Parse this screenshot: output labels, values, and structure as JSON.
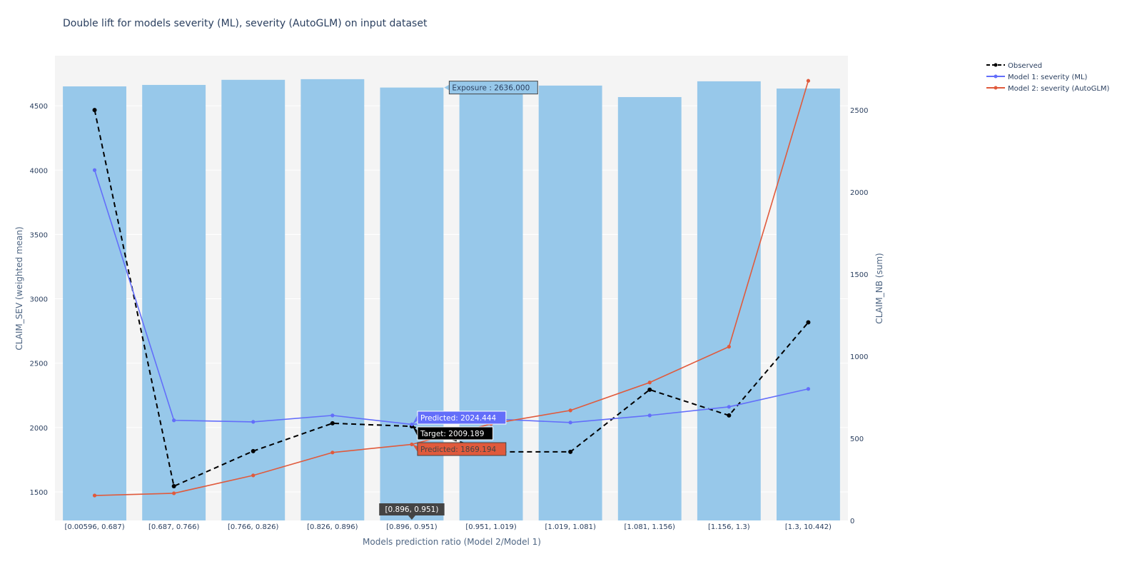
{
  "chart_data": {
    "type": "bar+line",
    "title": "Double lift for models severity (ML), severity (AutoGLM) on input dataset",
    "xlabel": "Models prediction ratio (Model 2/Model 1)",
    "ylabel": "CLAIM_SEV (weighted mean)",
    "y2label": "CLAIM_NB (sum)",
    "categories": [
      "[0.00596, 0.687)",
      "[0.687, 0.766)",
      "[0.766, 0.826)",
      "[0.826, 0.896)",
      "[0.896, 0.951)",
      "[0.951, 1.019)",
      "[1.019, 1.081)",
      "[1.081, 1.156)",
      "[1.156, 1.3)",
      "[1.3, 10.442)"
    ],
    "ylim": [
      1278,
      4889
    ],
    "y2lim": [
      0,
      2830
    ],
    "yticks": [
      1500,
      2000,
      2500,
      3000,
      3500,
      4000,
      4500
    ],
    "y2ticks": [
      0,
      500,
      1000,
      1500,
      2000,
      2500
    ],
    "grid": true,
    "legend_position": "top-right",
    "bars": {
      "name": "Exposure",
      "color": "#97c8ea",
      "axis": "y2",
      "values": [
        2643,
        2652,
        2683,
        2687,
        2636,
        2640,
        2648,
        2578,
        2674,
        2630
      ]
    },
    "series": [
      {
        "name": "Observed",
        "color": "#000000",
        "dash": true,
        "values": [
          4467,
          1544,
          1817,
          2033,
          2009.189,
          1811,
          1811,
          2294,
          2094,
          2817
        ]
      },
      {
        "name": "Model 1: severity (ML)",
        "color": "#636efa",
        "values": [
          4000,
          2056,
          2044,
          2094,
          2024.444,
          2067,
          2039,
          2094,
          2161,
          2300
        ]
      },
      {
        "name": "Model 2: severity (AutoGLM)",
        "color": "#e05a3c",
        "values": [
          1472,
          1489,
          1628,
          1806,
          1869.194,
          2028,
          2133,
          2350,
          2628,
          4694
        ]
      }
    ],
    "hover": {
      "category_label": "[0.896, 0.951)",
      "exposure": "Exposure : 2636.000",
      "model1": "Predicted: 2024.444",
      "target": "Target: 2009.189",
      "model2": "Predicted: 1869.194"
    }
  }
}
